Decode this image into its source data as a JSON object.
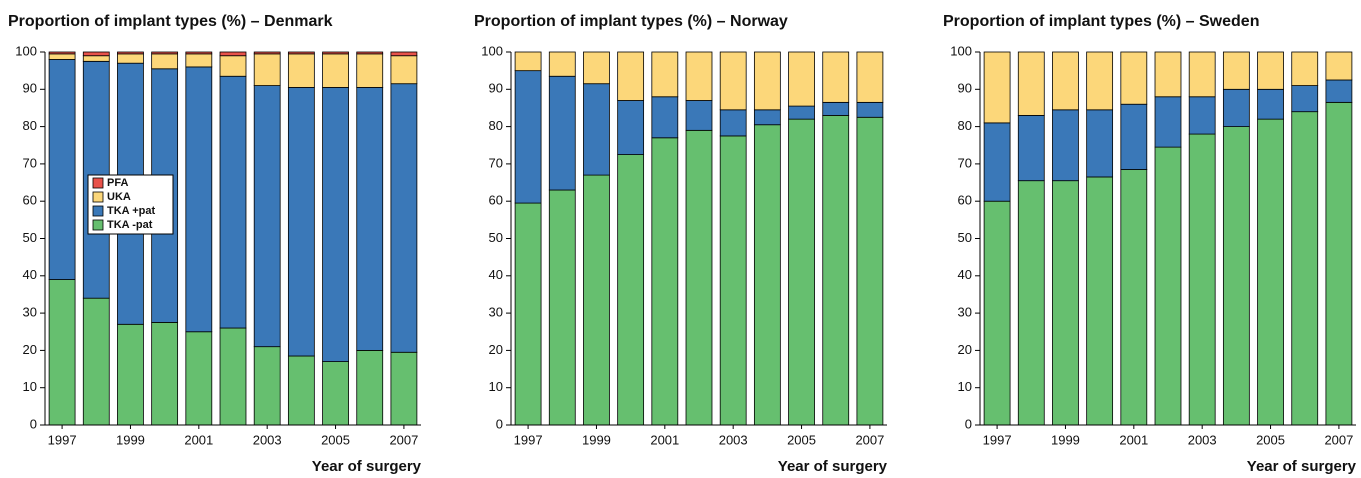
{
  "chart_data": [
    {
      "type": "bar",
      "stacked": true,
      "title": "Proportion of implant types (%) – Denmark",
      "x_label": "Year of surgery",
      "categories": [
        "1997",
        null,
        "1999",
        null,
        "2001",
        null,
        "2003",
        null,
        "2005",
        null,
        "2007"
      ],
      "series": [
        {
          "name": "TKA -pat",
          "color": "#66bf6f",
          "values": [
            39,
            34,
            27,
            27.5,
            25,
            26,
            21,
            18.5,
            17,
            20,
            19.5
          ]
        },
        {
          "name": "TKA +pat",
          "color": "#3a78b8",
          "values": [
            59,
            63.5,
            70,
            68,
            71,
            67.5,
            70,
            72,
            73.5,
            70.5,
            72
          ]
        },
        {
          "name": "UKA",
          "color": "#fcd77a",
          "values": [
            1.5,
            1.5,
            2.5,
            4,
            3.5,
            5.5,
            8.5,
            9,
            9,
            9,
            7.5
          ]
        },
        {
          "name": "PFA",
          "color": "#e8524a",
          "values": [
            0.5,
            1,
            0.5,
            0.5,
            0.5,
            1,
            0.5,
            0.5,
            0.5,
            0.5,
            1
          ]
        }
      ],
      "ylim": [
        0,
        100
      ],
      "yticks": [
        0,
        10,
        20,
        30,
        40,
        50,
        60,
        70,
        80,
        90,
        100
      ],
      "legend": true
    },
    {
      "type": "bar",
      "stacked": true,
      "title": "Proportion of implant types (%) – Norway",
      "x_label": "Year of surgery",
      "categories": [
        "1997",
        null,
        "1999",
        null,
        "2001",
        null,
        "2003",
        null,
        "2005",
        null,
        "2007"
      ],
      "series": [
        {
          "color": "#66bf6f",
          "values": [
            59.5,
            63,
            67,
            72.5,
            77,
            79,
            77.5,
            80.5,
            82,
            83,
            82.5
          ]
        },
        {
          "color": "#3a78b8",
          "values": [
            35.5,
            30.5,
            24.5,
            14.5,
            11,
            8,
            7,
            4,
            3.5,
            3.5,
            4
          ]
        },
        {
          "color": "#fcd77a",
          "values": [
            5,
            6.5,
            8.5,
            13,
            12,
            13,
            15.5,
            15.5,
            14.5,
            13.5,
            13.5
          ]
        }
      ],
      "ylim": [
        0,
        100
      ],
      "yticks": [
        0,
        10,
        20,
        30,
        40,
        50,
        60,
        70,
        80,
        90,
        100
      ],
      "legend": false
    },
    {
      "type": "bar",
      "stacked": true,
      "title": "Proportion of implant types (%) – Sweden",
      "x_label": "Year of surgery",
      "categories": [
        "1997",
        null,
        "1999",
        null,
        "2001",
        null,
        "2003",
        null,
        "2005",
        null,
        "2007"
      ],
      "series": [
        {
          "color": "#66bf6f",
          "values": [
            60,
            65.5,
            65.5,
            66.5,
            68.5,
            74.5,
            78,
            80,
            82,
            84,
            86.5
          ]
        },
        {
          "color": "#3a78b8",
          "values": [
            21,
            17.5,
            19,
            18,
            17.5,
            13.5,
            10,
            10,
            8,
            7,
            6
          ]
        },
        {
          "color": "#fcd77a",
          "values": [
            19,
            17,
            15.5,
            15.5,
            14,
            12,
            12,
            10,
            10,
            9,
            7.5
          ]
        }
      ],
      "ylim": [
        0,
        100
      ],
      "yticks": [
        0,
        10,
        20,
        30,
        40,
        50,
        60,
        70,
        80,
        90,
        100
      ],
      "legend": false
    }
  ]
}
